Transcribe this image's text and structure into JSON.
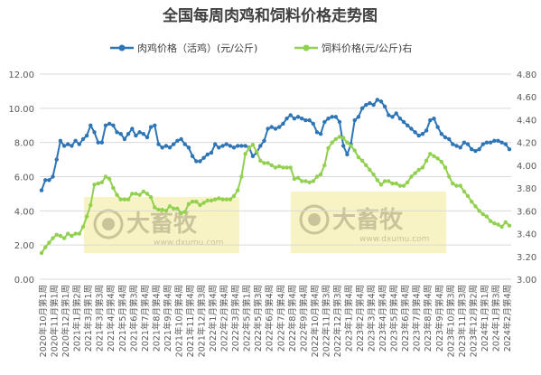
{
  "chart_data": {
    "type": "line",
    "title": "全国每周肉鸡和饲料价格走势图",
    "legend_position": "top",
    "watermark": {
      "brand": "大畜牧",
      "url": "www.dxumu.com"
    },
    "y_left": {
      "min": 0,
      "max": 12,
      "step": 2,
      "labels": [
        "0.00",
        "2.00",
        "4.00",
        "6.00",
        "8.00",
        "10.00",
        "12.00"
      ]
    },
    "y_right": {
      "min": 3.0,
      "max": 4.8,
      "step": 0.2,
      "labels": [
        "3.00",
        "3.20",
        "3.40",
        "3.60",
        "3.80",
        "4.00",
        "4.20",
        "4.40",
        "4.60",
        "4.80"
      ]
    },
    "x_tick_labels": [
      "2020年10月第1周",
      "2020年11月第1周",
      "2020年12月第1周",
      "2021年1月第2周",
      "2021年3月第1周",
      "2021年3月第3周",
      "2021年4月第4周",
      "2021年5月第4周",
      "2021年6月第3周",
      "2021年7月第4周",
      "2021年8月第4周",
      "2021年9月第4周",
      "2021年10月第4周",
      "2021年11月第4周",
      "2021年12月第3周",
      "2022年1月第4周",
      "2022年2月第4周",
      "2022年3月第4周",
      "2022年5月第1周",
      "2022年5月第3周",
      "2022年6月第4周",
      "2022年7月第4周",
      "2022年8月第4周",
      "2022年9月第4周",
      "2022年10月第4周",
      "2022年11月第3周",
      "2022年12月第3周",
      "2023年1月第4周",
      "2023年2月第4周",
      "2023年3月第4周",
      "2023年4月第4周",
      "2023年5月第4周",
      "2023年6月第4周",
      "2023年7月第4周",
      "2023年8月第4周",
      "2023年9月第4周",
      "2023年10月第3周",
      "2023年11月第3周",
      "2023年12月第2周",
      "2024年1月第1周",
      "2024年1月第3周",
      "2024年2月第4周"
    ],
    "series": [
      {
        "name": "肉鸡价格（活鸡）(元/公斤)",
        "axis": "left",
        "color": "#2e75b6",
        "values": [
          5.2,
          5.8,
          5.8,
          6.0,
          7.0,
          8.1,
          7.8,
          7.9,
          7.8,
          8.1,
          7.9,
          8.2,
          8.4,
          9.0,
          8.6,
          8.0,
          8.0,
          9.0,
          9.1,
          9.0,
          8.6,
          8.5,
          8.2,
          8.5,
          8.8,
          8.4,
          8.6,
          8.5,
          8.3,
          8.9,
          9.0,
          7.9,
          7.7,
          7.8,
          7.7,
          7.9,
          8.1,
          8.2,
          7.9,
          7.7,
          7.2,
          6.9,
          6.9,
          7.1,
          7.3,
          7.4,
          7.9,
          7.7,
          7.8,
          7.9,
          7.8,
          7.7,
          7.8,
          7.8,
          7.8,
          7.7,
          7.2,
          7.4,
          7.8,
          8.1,
          8.8,
          8.9,
          8.8,
          8.9,
          9.1,
          9.4,
          9.6,
          9.4,
          9.5,
          9.4,
          9.3,
          9.3,
          9.1,
          8.6,
          8.5,
          9.2,
          9.4,
          9.5,
          9.5,
          9.2,
          7.8,
          7.3,
          7.9,
          9.3,
          9.5,
          10.0,
          10.2,
          10.3,
          10.2,
          10.5,
          10.4,
          10.1,
          9.6,
          9.5,
          9.7,
          9.4,
          9.2,
          9.0,
          8.8,
          8.6,
          8.4,
          8.5,
          8.7,
          9.3,
          9.4,
          8.9,
          8.5,
          8.3,
          8.2,
          7.9,
          7.8,
          7.7,
          8.0,
          7.9,
          7.6,
          7.5,
          7.6,
          7.9,
          8.0,
          8.0,
          8.1,
          8.1,
          8.0,
          7.9,
          7.6
        ]
      },
      {
        "name": "饲料价格(元/公斤)右",
        "axis": "right",
        "color": "#92d050",
        "values": [
          3.23,
          3.28,
          3.32,
          3.36,
          3.39,
          3.38,
          3.36,
          3.4,
          3.38,
          3.4,
          3.4,
          3.46,
          3.55,
          3.65,
          3.83,
          3.84,
          3.85,
          3.9,
          3.88,
          3.8,
          3.74,
          3.7,
          3.7,
          3.7,
          3.75,
          3.75,
          3.74,
          3.77,
          3.75,
          3.72,
          3.63,
          3.61,
          3.61,
          3.6,
          3.64,
          3.62,
          3.62,
          3.58,
          3.59,
          3.66,
          3.68,
          3.68,
          3.65,
          3.67,
          3.69,
          3.69,
          3.7,
          3.71,
          3.7,
          3.7,
          3.7,
          3.73,
          3.78,
          3.9,
          4.1,
          4.15,
          4.18,
          4.12,
          4.04,
          4.02,
          4.02,
          4.0,
          3.98,
          3.99,
          3.98,
          3.98,
          3.98,
          3.88,
          3.89,
          3.86,
          3.86,
          3.85,
          3.86,
          3.9,
          3.92,
          4.0,
          4.15,
          4.2,
          4.23,
          4.25,
          4.24,
          4.2,
          4.17,
          4.13,
          4.07,
          4.04,
          4.0,
          3.96,
          3.92,
          3.87,
          3.83,
          3.86,
          3.86,
          3.84,
          3.84,
          3.82,
          3.82,
          3.85,
          3.9,
          3.93,
          3.96,
          3.98,
          4.04,
          4.1,
          4.08,
          4.06,
          4.03,
          3.98,
          3.9,
          3.84,
          3.82,
          3.82,
          3.77,
          3.73,
          3.68,
          3.64,
          3.6,
          3.57,
          3.55,
          3.51,
          3.49,
          3.48,
          3.46,
          3.5,
          3.47
        ]
      }
    ]
  }
}
